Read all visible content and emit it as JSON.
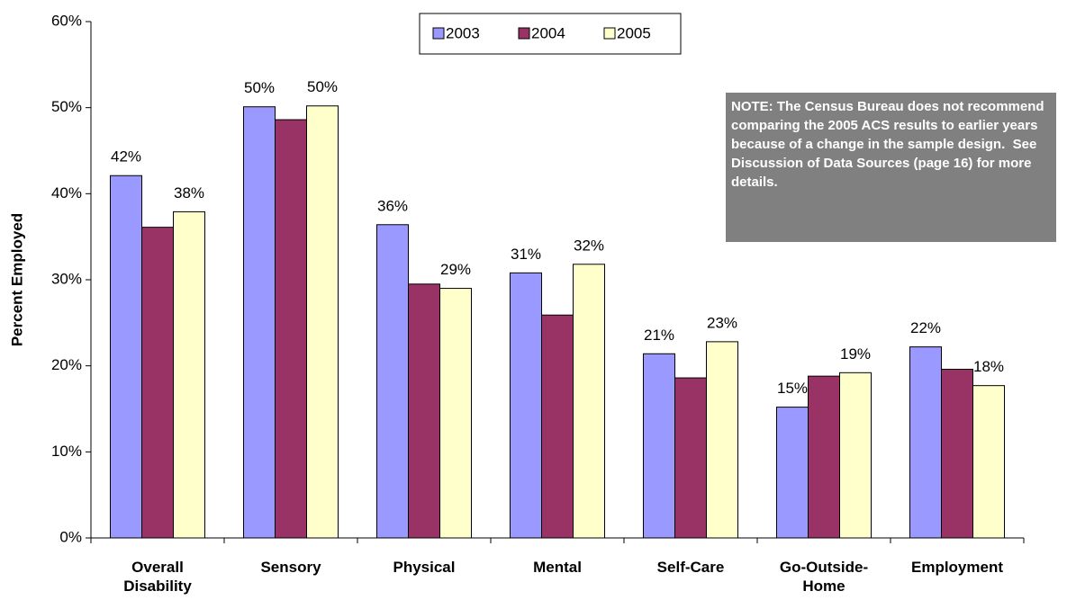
{
  "chart_data": {
    "type": "bar",
    "y_label": "Percent Employed",
    "categories": [
      "Overall Disability",
      "Sensory",
      "Physical",
      "Mental",
      "Self-Care",
      "Go-Outside-Home",
      "Employment"
    ],
    "series": [
      {
        "name": "2003",
        "color": "#9999ff",
        "values": [
          42.1,
          50.1,
          36.4,
          30.8,
          21.4,
          15.2,
          22.2
        ],
        "value_labels": [
          "42%",
          "50%",
          "36%",
          "31%",
          "21%",
          "15%",
          "22%"
        ]
      },
      {
        "name": "2004",
        "color": "#993366",
        "values": [
          36.1,
          48.6,
          29.5,
          25.9,
          18.6,
          18.8,
          19.6
        ]
      },
      {
        "name": "2005",
        "color": "#ffffcc",
        "values": [
          37.9,
          50.2,
          29.0,
          31.8,
          22.8,
          19.2,
          17.7
        ],
        "value_labels": [
          "38%",
          "50%",
          "29%",
          "32%",
          "23%",
          "19%",
          "18%"
        ]
      }
    ],
    "ylim": [
      0,
      60
    ],
    "yticks": [
      {
        "value": 0,
        "label": "0%"
      },
      {
        "value": 10,
        "label": "10%"
      },
      {
        "value": 20,
        "label": "20%"
      },
      {
        "value": 30,
        "label": "30%"
      },
      {
        "value": 40,
        "label": "40%"
      },
      {
        "value": 50,
        "label": "50%"
      },
      {
        "value": 60,
        "label": "60%"
      }
    ],
    "legend": "top",
    "annotation": "NOTE: The Census Bureau does not recommend comparing the 2005 ACS results to earlier years because of a change in the sample design.  See Discussion of Data Sources (page 16) for more details."
  }
}
